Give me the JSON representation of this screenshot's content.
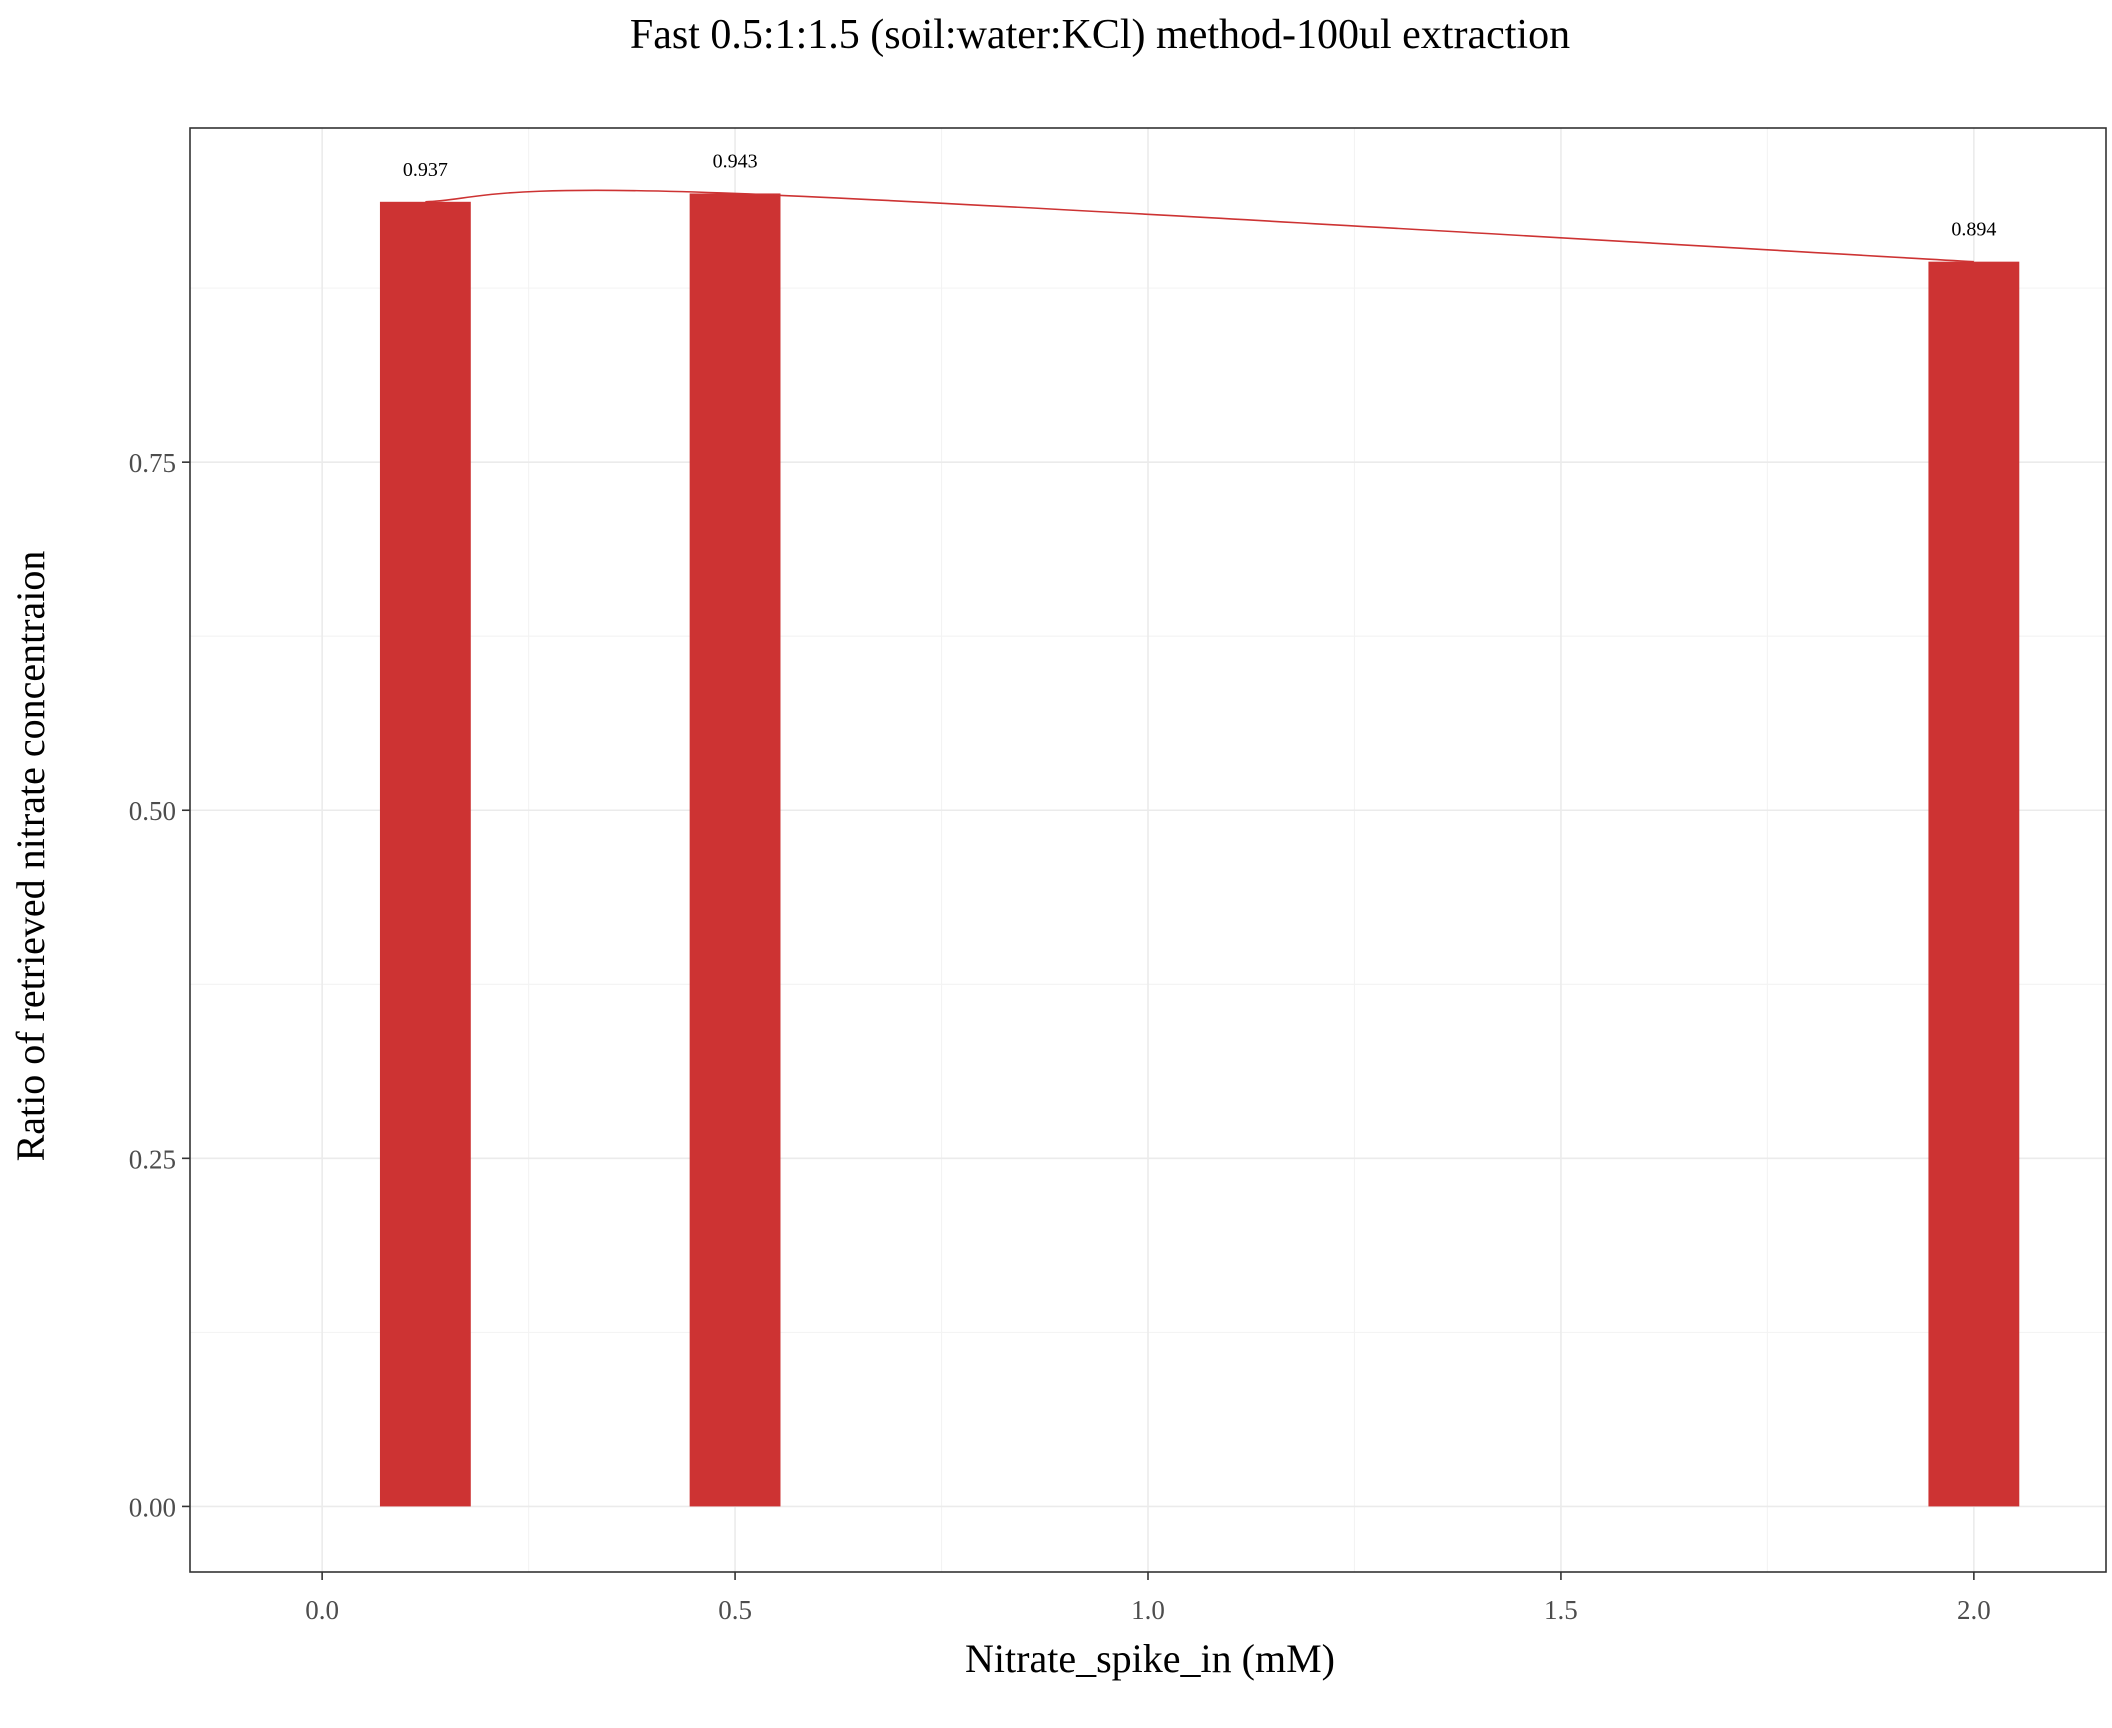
{
  "chart_data": {
    "type": "bar",
    "title": "Fast 0.5:1:1.5 (soil:water:KCl) method-100ul extraction",
    "xlabel": "Nitrate_spike_in (mM)",
    "ylabel": "Ratio of retrieved nitrate concentraion",
    "x": [
      0.125,
      0.5,
      2.0
    ],
    "values": [
      0.937,
      0.943,
      0.894
    ],
    "data_labels": [
      "0.937",
      "0.943",
      "0.894"
    ],
    "bar_width": 0.11,
    "xlim": [
      -0.16,
      2.16
    ],
    "ylim": [
      -0.0471,
      0.99
    ],
    "x_ticks": [
      0.0,
      0.5,
      1.0,
      1.5,
      2.0
    ],
    "x_tick_labels": [
      "0.0",
      "0.5",
      "1.0",
      "1.5",
      "2.0"
    ],
    "y_ticks": [
      0.0,
      0.25,
      0.5,
      0.75
    ],
    "y_tick_labels": [
      "0.00",
      "0.25",
      "0.50",
      "0.75"
    ],
    "bar_color": "#cd3333",
    "line_color": "#cd3333",
    "smooth_line": true,
    "grid": true,
    "legend": "none"
  }
}
